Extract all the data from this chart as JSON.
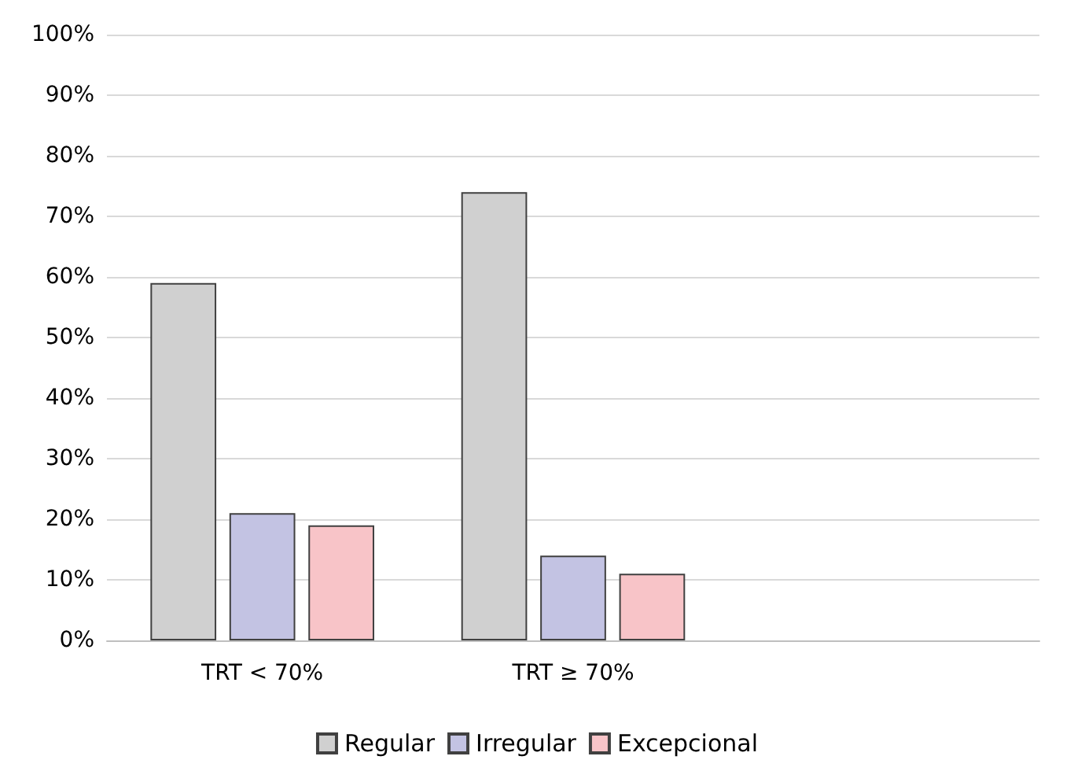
{
  "chart_data": {
    "type": "bar",
    "categories": [
      "TRT < 70%",
      "TRT ≥ 70%",
      null
    ],
    "series": [
      {
        "name": "Regular",
        "color": "#d0d0d0",
        "values": [
          59,
          74,
          null
        ]
      },
      {
        "name": "Irregular",
        "color": "#c3c3e3",
        "values": [
          21,
          14,
          null
        ]
      },
      {
        "name": "Excepcional",
        "color": "#f8c4c8",
        "values": [
          19,
          11,
          null
        ]
      }
    ],
    "ylim": [
      0,
      100
    ],
    "yticks": [
      {
        "value": 0,
        "label": "0%"
      },
      {
        "value": 10,
        "label": "10%"
      },
      {
        "value": 20,
        "label": "20%"
      },
      {
        "value": 30,
        "label": "30%"
      },
      {
        "value": 40,
        "label": "40%"
      },
      {
        "value": 50,
        "label": "50%"
      },
      {
        "value": 60,
        "label": "60%"
      },
      {
        "value": 70,
        "label": "70%"
      },
      {
        "value": 80,
        "label": "80%"
      },
      {
        "value": 90,
        "label": "90%"
      },
      {
        "value": 100,
        "label": "100%"
      }
    ],
    "grid": "y",
    "legend": "bottom"
  }
}
